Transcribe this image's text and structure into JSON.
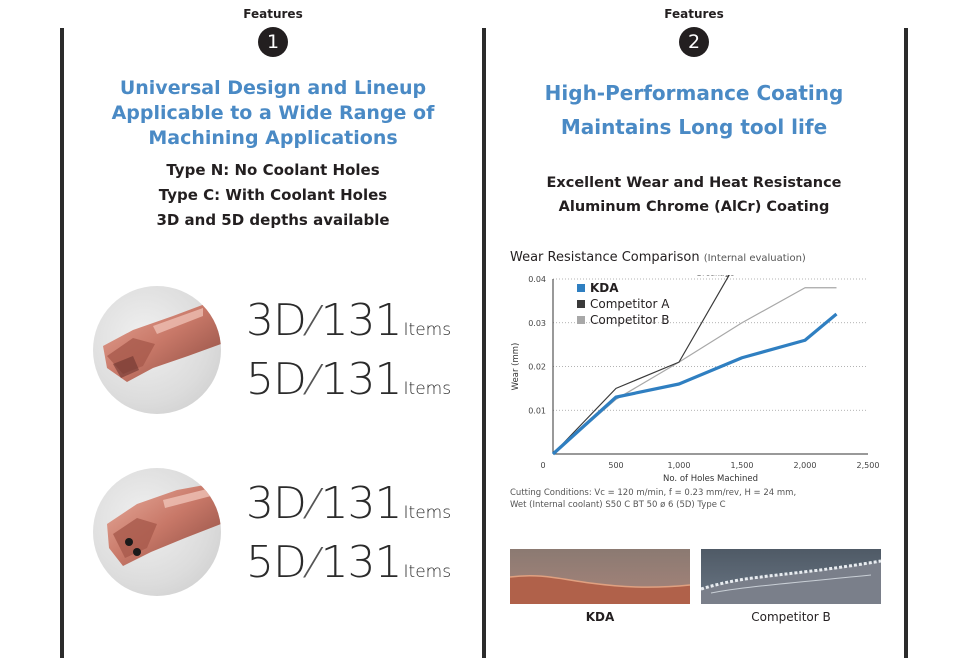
{
  "feature1": {
    "label": "Features",
    "number": "1",
    "title_lines": [
      "Universal Design and Lineup",
      "Applicable to a Wide Range of",
      "Machining Applications"
    ],
    "sub_lines": [
      "Type N: No Coolant Holes",
      "Type C: With Coolant Holes",
      "3D and 5D depths available"
    ],
    "groups": [
      {
        "rows": [
          {
            "depth": "3D",
            "count": "131",
            "unit": "Items"
          },
          {
            "depth": "5D",
            "count": "131",
            "unit": "Items"
          }
        ]
      },
      {
        "rows": [
          {
            "depth": "3D",
            "count": "131",
            "unit": "Items"
          },
          {
            "depth": "5D",
            "count": "131",
            "unit": "Items"
          }
        ]
      }
    ]
  },
  "feature2": {
    "label": "Features",
    "number": "2",
    "title_lines": [
      "High-Performance Coating",
      "Maintains Long tool life"
    ],
    "sub_lines": [
      "Excellent Wear and Heat Resistance",
      "Aluminum Chrome (AlCr) Coating"
    ],
    "chart_title": "Wear Resistance Comparison",
    "chart_title_note": "(Internal evaluation)",
    "conditions": [
      "Cutting Conditions: Vc = 120 m/min, f = 0.23 mm/rev, H = 24 mm,",
      "Wet (Internal coolant)  S50 C  BT 50 ø 6 (5D)  Type C"
    ],
    "photos": [
      {
        "caption": "KDA"
      },
      {
        "caption": "Competitor B"
      }
    ]
  },
  "chart_data": {
    "type": "line",
    "title": "Wear Resistance Comparison",
    "xlabel": "No. of Holes Machined",
    "ylabel": "Wear (mm)",
    "xlim": [
      0,
      2500
    ],
    "ylim": [
      0,
      0.04
    ],
    "xticks": [
      "0",
      "500",
      "1,000",
      "1,500",
      "2,000",
      "2,500"
    ],
    "yticks": [
      "0.01",
      "0.02",
      "0.03",
      "0.04"
    ],
    "grid": "horizontal dotted",
    "legend_position": "top-left",
    "annotation": {
      "text": "Breakage",
      "x": 1290,
      "y": 0.0415
    },
    "series": [
      {
        "name": "KDA",
        "color": "#2f7fc1",
        "x": [
          0,
          500,
          1000,
          1500,
          2000,
          2250
        ],
        "y": [
          0,
          0.013,
          0.016,
          0.022,
          0.026,
          0.032
        ]
      },
      {
        "name": "Competitor A",
        "color": "#3a3a3a",
        "x": [
          0,
          500,
          1000,
          1400
        ],
        "y": [
          0,
          0.015,
          0.021,
          0.041
        ]
      },
      {
        "name": "Competitor B",
        "color": "#a8a8a8",
        "x": [
          0,
          500,
          1000,
          1500,
          2000,
          2250
        ],
        "y": [
          0,
          0.0125,
          0.021,
          0.03,
          0.038,
          0.038
        ]
      }
    ]
  }
}
